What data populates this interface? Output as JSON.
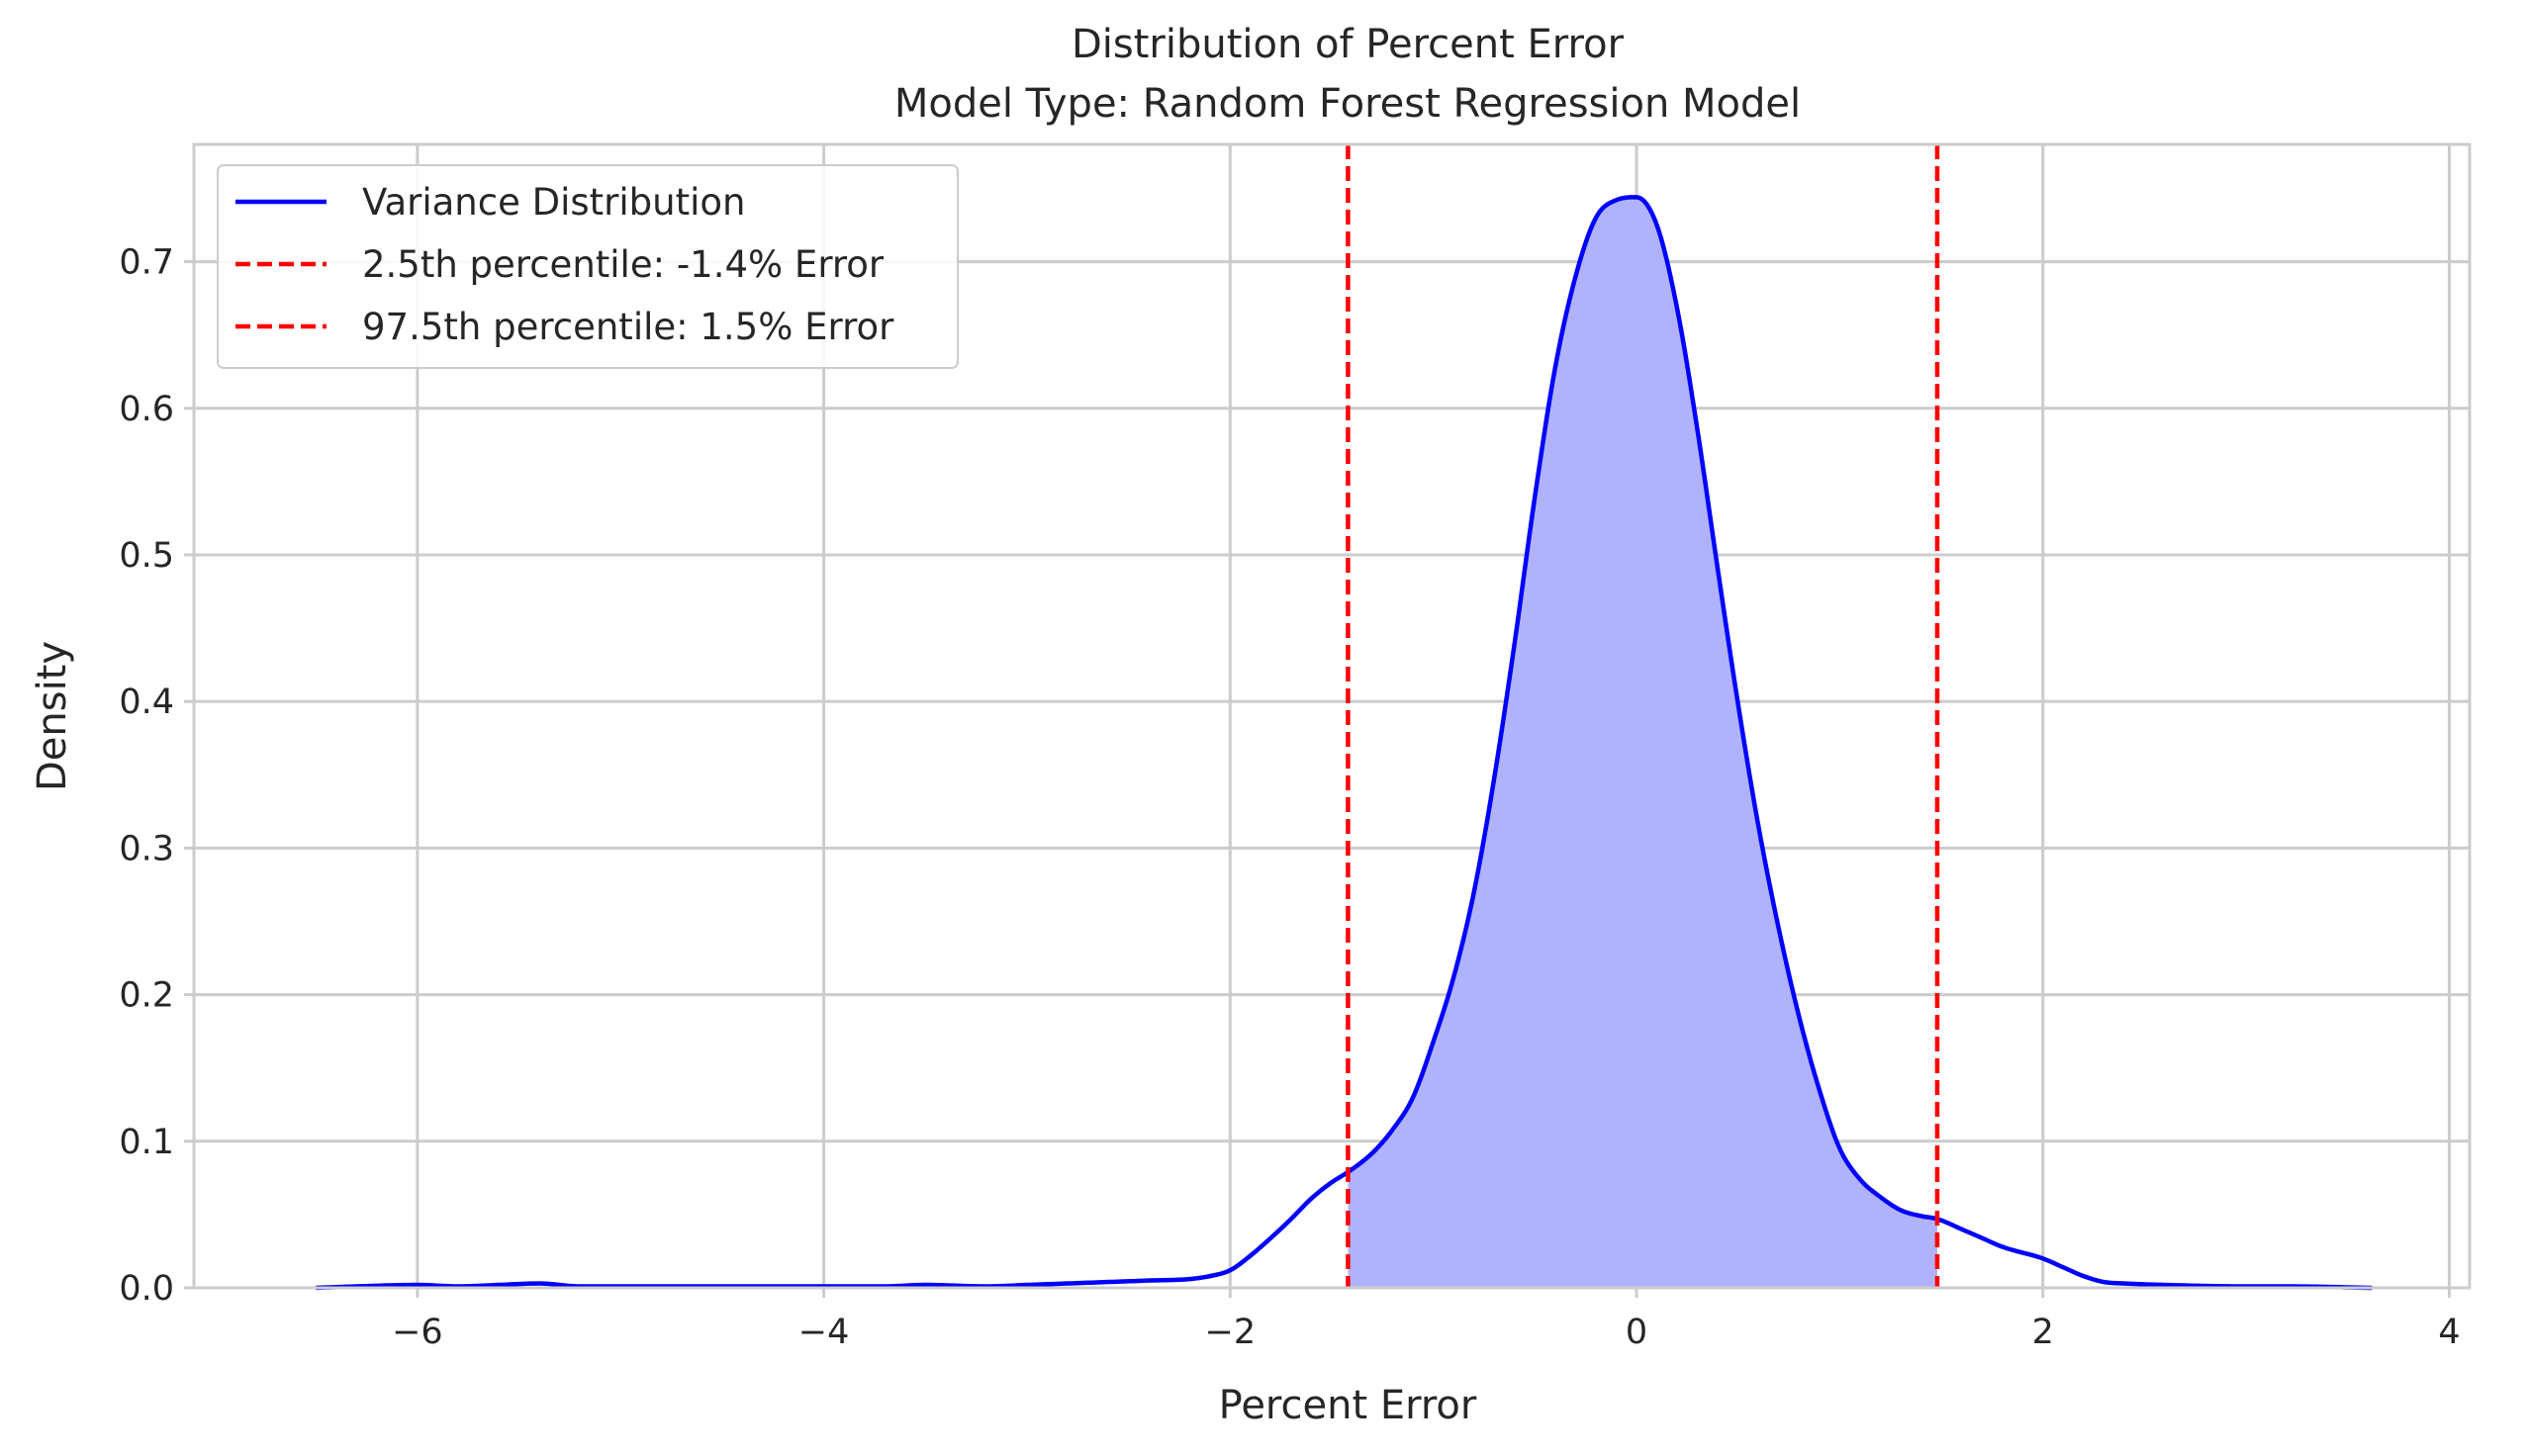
{
  "chart_data": {
    "type": "area",
    "title": "Distribution of Percent Error",
    "subtitle": "Model Type:  Random Forest Regression Model",
    "xlabel": "Percent Error",
    "ylabel": "Density",
    "xlim": [
      -7.1,
      4.1
    ],
    "ylim": [
      0.0,
      0.78
    ],
    "xticks": [
      -6,
      -4,
      -2,
      0,
      2,
      4
    ],
    "xtick_labels": [
      "−6",
      "−4",
      "−2",
      "0",
      "2",
      "4"
    ],
    "yticks": [
      0.0,
      0.1,
      0.2,
      0.3,
      0.4,
      0.5,
      0.6,
      0.7
    ],
    "ytick_labels": [
      "0.0",
      "0.1",
      "0.2",
      "0.3",
      "0.4",
      "0.5",
      "0.6",
      "0.7"
    ],
    "grid": true,
    "legend_position": "top-left",
    "series": [
      {
        "name": "Variance Distribution",
        "kind": "kde-line",
        "color": "#0000ff",
        "fill_color": "#b0b3fc",
        "fill_between": [
          -1.42,
          1.48
        ],
        "x": [
          -6.5,
          -6.3,
          -6.0,
          -5.8,
          -5.6,
          -5.4,
          -5.2,
          -5.0,
          -4.5,
          -4.0,
          -3.7,
          -3.5,
          -3.2,
          -3.0,
          -2.8,
          -2.6,
          -2.4,
          -2.2,
          -2.1,
          -2.0,
          -1.9,
          -1.8,
          -1.7,
          -1.6,
          -1.5,
          -1.42,
          -1.3,
          -1.2,
          -1.1,
          -1.0,
          -0.9,
          -0.8,
          -0.7,
          -0.6,
          -0.5,
          -0.4,
          -0.3,
          -0.2,
          -0.1,
          0.0,
          0.1,
          0.2,
          0.3,
          0.4,
          0.5,
          0.6,
          0.7,
          0.8,
          0.9,
          1.0,
          1.1,
          1.2,
          1.3,
          1.4,
          1.48,
          1.6,
          1.7,
          1.8,
          2.0,
          2.1,
          2.2,
          2.3,
          2.4,
          2.6,
          3.0,
          3.2,
          3.62
        ],
        "y": [
          0.0,
          0.001,
          0.002,
          0.001,
          0.002,
          0.003,
          0.001,
          0.001,
          0.001,
          0.001,
          0.001,
          0.002,
          0.001,
          0.002,
          0.003,
          0.004,
          0.005,
          0.006,
          0.008,
          0.012,
          0.022,
          0.034,
          0.047,
          0.061,
          0.072,
          0.079,
          0.092,
          0.108,
          0.13,
          0.168,
          0.212,
          0.27,
          0.348,
          0.44,
          0.54,
          0.628,
          0.69,
          0.73,
          0.742,
          0.744,
          0.725,
          0.668,
          0.585,
          0.49,
          0.398,
          0.315,
          0.245,
          0.185,
          0.135,
          0.095,
          0.074,
          0.062,
          0.053,
          0.049,
          0.047,
          0.04,
          0.034,
          0.028,
          0.02,
          0.014,
          0.008,
          0.004,
          0.003,
          0.002,
          0.001,
          0.001,
          0.0
        ]
      },
      {
        "name": "2.5th percentile: -1.4% Error",
        "kind": "vline",
        "color": "#ff0000",
        "x": -1.42
      },
      {
        "name": "97.5th percentile: 1.5% Error",
        "kind": "vline",
        "color": "#ff0000",
        "x": 1.48
      }
    ]
  }
}
